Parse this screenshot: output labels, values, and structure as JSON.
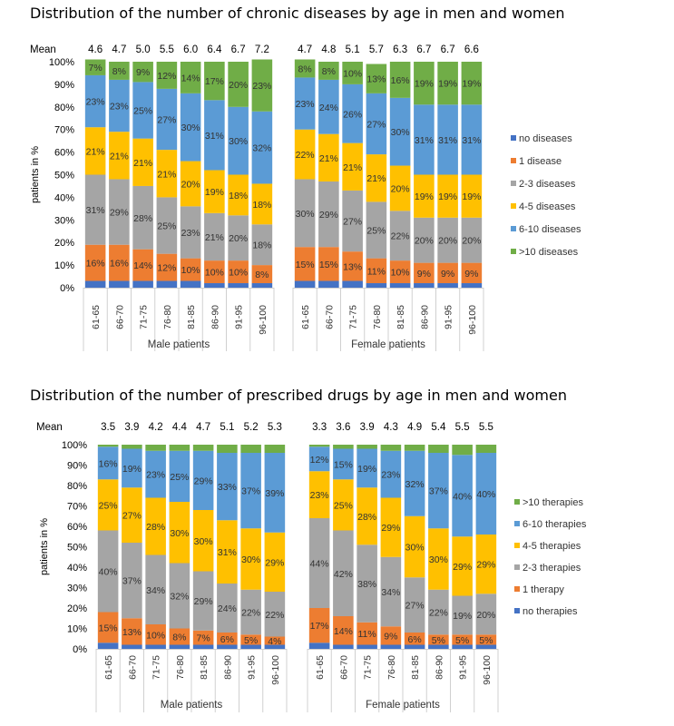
{
  "chart_data": [
    {
      "type": "bar",
      "stacked": true,
      "title": "Distribution of the number of chronic diseases by age in men and women",
      "ylabel": "patients in %",
      "ylim": [
        0,
        100
      ],
      "yticks": [
        "0%",
        "10%",
        "20%",
        "30%",
        "40%",
        "50%",
        "60%",
        "70%",
        "80%",
        "90%",
        "100%"
      ],
      "mean_label": "Mean",
      "grid": false,
      "legend_position": "right",
      "groups": [
        {
          "name": "Male patients",
          "categories": [
            "61-65",
            "66-70",
            "71-75",
            "76-80",
            "81-85",
            "86-90",
            "91-95",
            "96-100"
          ],
          "mean": [
            "4.6",
            "4.7",
            "5.0",
            "5.5",
            "6.0",
            "6.4",
            "6.7",
            "7.2"
          ],
          "series": [
            {
              "name": "no diseases",
              "values": [
                3,
                3,
                3,
                3,
                3,
                2,
                2,
                2
              ]
            },
            {
              "name": "1 disease",
              "values": [
                16,
                16,
                14,
                12,
                10,
                10,
                10,
                8
              ]
            },
            {
              "name": "2-3 diseases",
              "values": [
                31,
                29,
                28,
                25,
                23,
                21,
                20,
                18
              ]
            },
            {
              "name": "4-5 diseases",
              "values": [
                21,
                21,
                21,
                21,
                20,
                19,
                18,
                18
              ]
            },
            {
              "name": "6-10 diseases",
              "values": [
                23,
                23,
                25,
                27,
                30,
                31,
                30,
                32
              ]
            },
            {
              "name": ">10 diseases",
              "values": [
                7,
                8,
                9,
                12,
                14,
                17,
                20,
                23
              ]
            }
          ]
        },
        {
          "name": "Female patients",
          "categories": [
            "61-65",
            "66-70",
            "71-75",
            "76-80",
            "81-85",
            "86-90",
            "91-95",
            "96-100"
          ],
          "mean": [
            "4.7",
            "4.8",
            "5.1",
            "5.7",
            "6.3",
            "6.7",
            "6.7",
            "6.6"
          ],
          "series": [
            {
              "name": "no diseases",
              "values": [
                3,
                3,
                3,
                2,
                2,
                2,
                2,
                2
              ]
            },
            {
              "name": "1 disease",
              "values": [
                15,
                15,
                13,
                11,
                10,
                9,
                9,
                9
              ]
            },
            {
              "name": "2-3 diseases",
              "values": [
                30,
                29,
                27,
                25,
                22,
                20,
                20,
                20
              ]
            },
            {
              "name": "4-5 diseases",
              "values": [
                22,
                21,
                21,
                21,
                20,
                19,
                19,
                19
              ]
            },
            {
              "name": "6-10 diseases",
              "values": [
                23,
                24,
                26,
                27,
                30,
                31,
                31,
                31
              ]
            },
            {
              "name": ">10 diseases",
              "values": [
                8,
                8,
                10,
                13,
                16,
                19,
                19,
                19
              ]
            }
          ]
        }
      ],
      "value_labels": {
        "1 disease": [
          [
            "16%",
            "16%",
            "14%",
            "12%",
            "10%",
            "10%",
            "10%",
            "8%"
          ],
          [
            "15%",
            "15%",
            "13%",
            "11%",
            "10%",
            "9%",
            "9%",
            "9%"
          ]
        ],
        "2-3 diseases": [
          [
            "31%",
            "29%",
            "28%",
            "25%",
            "23%",
            "21%",
            "20%",
            "18%"
          ],
          [
            "30%",
            "29%",
            "27%",
            "25%",
            "22%",
            "20%",
            "20%",
            "20%"
          ]
        ],
        "4-5 diseases": [
          [
            "21%",
            "21%",
            "21%",
            "21%",
            "20%",
            "19%",
            "18%",
            "18%"
          ],
          [
            "22%",
            "21%",
            "21%",
            "21%",
            "20%",
            "19%",
            "19%",
            "19%"
          ]
        ],
        "6-10 diseases": [
          [
            "23%",
            "23%",
            "25%",
            "27%",
            "30%",
            "31%",
            "30%",
            "32%"
          ],
          [
            "23%",
            "24%",
            "26%",
            "27%",
            "30%",
            "31%",
            "31%",
            "31%"
          ]
        ],
        ">10 diseases": [
          [
            "7%",
            "8%",
            "9%",
            "12%",
            "14%",
            "17%",
            "20%",
            "23%"
          ],
          [
            "8%",
            "8%",
            "10%",
            "13%",
            "16%",
            "19%",
            "19%",
            "19%"
          ]
        ]
      }
    },
    {
      "type": "bar",
      "stacked": true,
      "title": "Distribution of the number of prescribed drugs by age in men and women",
      "ylabel": "patients in %",
      "ylim": [
        0,
        100
      ],
      "yticks": [
        "0%",
        "10%",
        "20%",
        "30%",
        "40%",
        "50%",
        "60%",
        "70%",
        "80%",
        "90%",
        "100%"
      ],
      "mean_label": "Mean",
      "grid": false,
      "legend_position": "right",
      "groups": [
        {
          "name": "Male patients",
          "categories": [
            "61-65",
            "66-70",
            "71-75",
            "76-80",
            "81-85",
            "86-90",
            "91-95",
            "96-100"
          ],
          "mean": [
            "3.5",
            "3.9",
            "4.2",
            "4.4",
            "4.7",
            "5.1",
            "5.2",
            "5.3"
          ],
          "series": [
            {
              "name": "no therapies",
              "values": [
                3,
                2,
                2,
                2,
                2,
                2,
                2,
                2
              ]
            },
            {
              "name": "1 therapy",
              "values": [
                15,
                13,
                10,
                8,
                7,
                6,
                5,
                4
              ]
            },
            {
              "name": "2-3 therapies",
              "values": [
                40,
                37,
                34,
                32,
                29,
                24,
                22,
                22
              ]
            },
            {
              "name": "4-5 therapies",
              "values": [
                25,
                27,
                28,
                30,
                30,
                31,
                30,
                29
              ]
            },
            {
              "name": "6-10 therapies",
              "values": [
                16,
                19,
                23,
                25,
                29,
                33,
                37,
                39
              ]
            },
            {
              "name": ">10 therapies",
              "values": [
                1,
                2,
                3,
                3,
                3,
                4,
                4,
                4
              ]
            }
          ]
        },
        {
          "name": "Female patients",
          "categories": [
            "61-65",
            "66-70",
            "71-75",
            "76-80",
            "81-85",
            "86-90",
            "91-95",
            "96-100"
          ],
          "mean": [
            "3.3",
            "3.6",
            "3.9",
            "4.3",
            "4.9",
            "5.4",
            "5.5",
            "5.5"
          ],
          "series": [
            {
              "name": "no therapies",
              "values": [
                3,
                2,
                2,
                2,
                2,
                2,
                2,
                2
              ]
            },
            {
              "name": "1 therapy",
              "values": [
                17,
                14,
                11,
                9,
                6,
                5,
                5,
                5
              ]
            },
            {
              "name": "2-3 therapies",
              "values": [
                44,
                42,
                38,
                34,
                27,
                22,
                19,
                20
              ]
            },
            {
              "name": "4-5 therapies",
              "values": [
                23,
                25,
                28,
                29,
                30,
                30,
                29,
                29
              ]
            },
            {
              "name": "6-10 therapies",
              "values": [
                12,
                15,
                19,
                23,
                32,
                37,
                40,
                40
              ]
            },
            {
              "name": ">10 therapies",
              "values": [
                1,
                2,
                2,
                3,
                3,
                4,
                5,
                4
              ]
            }
          ]
        }
      ],
      "value_labels": {
        "1 therapy": [
          [
            "15%",
            "13%",
            "10%",
            "8%",
            "7%",
            "6%",
            "5%",
            "4%"
          ],
          [
            "17%",
            "14%",
            "11%",
            "9%",
            "6%",
            "5%",
            "5%",
            "5%"
          ]
        ],
        "2-3 therapies": [
          [
            "40%",
            "37%",
            "34%",
            "32%",
            "29%",
            "24%",
            "22%",
            "22%"
          ],
          [
            "44%",
            "42%",
            "38%",
            "34%",
            "27%",
            "22%",
            "19%",
            "20%"
          ]
        ],
        "4-5 therapies": [
          [
            "25%",
            "27%",
            "28%",
            "30%",
            "30%",
            "31%",
            "30%",
            "29%"
          ],
          [
            "23%",
            "25%",
            "28%",
            "29%",
            "30%",
            "30%",
            "29%",
            "29%"
          ]
        ],
        "6-10 therapies": [
          [
            "16%",
            "19%",
            "23%",
            "25%",
            "29%",
            "33%",
            "37%",
            "39%"
          ],
          [
            "12%",
            "15%",
            "19%",
            "23%",
            "32%",
            "37%",
            "40%",
            "40%"
          ]
        ]
      }
    }
  ],
  "colors": [
    "#4472C4",
    "#ED7D31",
    "#A5A5A5",
    "#FFC000",
    "#5B9BD5",
    "#70AD47"
  ]
}
